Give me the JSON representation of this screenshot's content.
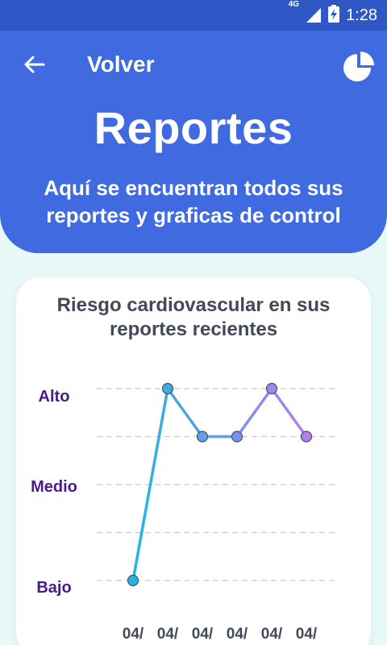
{
  "status_bar": {
    "network": "4G",
    "time": "1:28",
    "icons": [
      "signal-icon",
      "battery-charging-icon"
    ]
  },
  "header": {
    "back_label": "Volver",
    "back_icon": "arrow-left-icon",
    "action_icon": "pie-chart-icon",
    "title": "Reportes",
    "subtitle": "Aquí se encuentran todos sus reportes y graficas de control"
  },
  "colors": {
    "status_bar": "#2f58c6",
    "header": "#3f6ae0",
    "background": "#e9f9f8",
    "axis_label": "#4a1a8a",
    "line_start": "#20b6e0",
    "line_end": "#b57ef0"
  },
  "card": {
    "title": "Riesgo cardiovascular en sus reportes recientes"
  },
  "chart_data": {
    "type": "line",
    "title": "Riesgo cardiovascular en sus reportes recientes",
    "y_categories": [
      "Bajo",
      "Medio",
      "Alto"
    ],
    "y_tick_labels": [
      "Alto",
      "Medio",
      "Bajo"
    ],
    "ylim": [
      0,
      2
    ],
    "grid": true,
    "x": [
      "04/",
      "04/",
      "04/",
      "04/",
      "04/",
      "04/"
    ],
    "values": [
      0,
      2,
      1.5,
      1.5,
      2,
      1.5
    ]
  }
}
